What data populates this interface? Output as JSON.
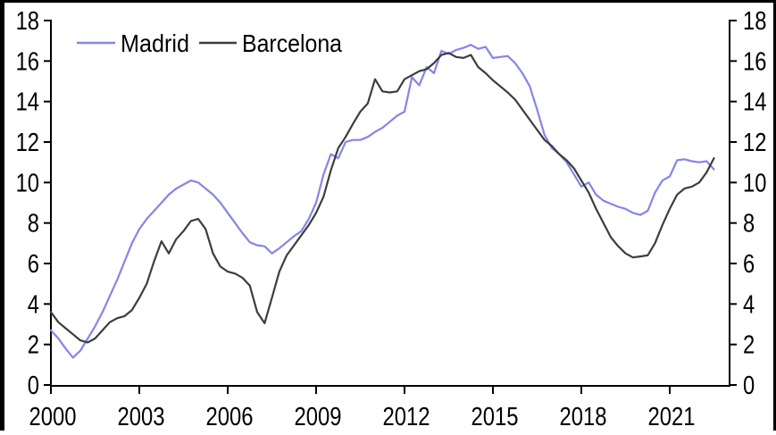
{
  "title": "",
  "legend": {
    "items": [
      {
        "label": "Madrid",
        "color": "#8585e8"
      },
      {
        "label": "Barcelona",
        "color": "#3d3d3d"
      }
    ]
  },
  "colors": {
    "background": "#ffffff",
    "axis": "#000000",
    "frame_border": "#000000",
    "madrid_line": "#8585e8",
    "barcelona_line": "#3d3d3d"
  },
  "chart_data": {
    "type": "line",
    "title": "",
    "xlabel": "",
    "ylabel": "",
    "grid": false,
    "legend_position": "top-left",
    "dual_y_axis": true,
    "xlim": [
      2000,
      2023.03
    ],
    "ylim": [
      0,
      18
    ],
    "x_ticks": [
      2000,
      2003,
      2006,
      2009,
      2012,
      2015,
      2018,
      2021
    ],
    "y_ticks": [
      0,
      2,
      4,
      6,
      8,
      10,
      12,
      14,
      16,
      18
    ],
    "x_start": 2000,
    "x_step": 0.25,
    "x_unit": "year-quarterly",
    "series": [
      {
        "name": "Madrid",
        "color": "#8585e8",
        "values": [
          2.7,
          2.3,
          1.8,
          1.35,
          1.7,
          2.3,
          2.9,
          3.6,
          4.4,
          5.2,
          6.1,
          7.0,
          7.7,
          8.2,
          8.6,
          9.0,
          9.4,
          9.7,
          9.9,
          10.1,
          10.0,
          9.7,
          9.4,
          9.0,
          8.5,
          8.0,
          7.5,
          7.05,
          6.9,
          6.85,
          6.5,
          6.75,
          7.05,
          7.35,
          7.6,
          8.2,
          9.0,
          10.4,
          11.4,
          11.2,
          12.0,
          12.1,
          12.1,
          12.25,
          12.5,
          12.7,
          13.0,
          13.3,
          13.5,
          15.2,
          14.8,
          15.7,
          15.4,
          16.5,
          16.35,
          16.55,
          16.65,
          16.8,
          16.6,
          16.7,
          16.15,
          16.2,
          16.25,
          15.9,
          15.4,
          14.75,
          13.6,
          12.35,
          11.7,
          11.4,
          11.0,
          10.4,
          9.8,
          10.0,
          9.4,
          9.1,
          8.95,
          8.8,
          8.7,
          8.5,
          8.4,
          8.6,
          9.5,
          10.1,
          10.3,
          11.1,
          11.15,
          11.05,
          11.0,
          11.05,
          10.65
        ]
      },
      {
        "name": "Barcelona",
        "color": "#3d3d3d",
        "values": [
          3.6,
          3.1,
          2.8,
          2.5,
          2.2,
          2.1,
          2.3,
          2.7,
          3.1,
          3.3,
          3.4,
          3.7,
          4.3,
          5.0,
          6.1,
          7.1,
          6.5,
          7.2,
          7.6,
          8.1,
          8.2,
          7.7,
          6.5,
          5.85,
          5.6,
          5.5,
          5.3,
          4.9,
          3.6,
          3.05,
          4.3,
          5.6,
          6.4,
          6.9,
          7.4,
          7.9,
          8.5,
          9.3,
          10.6,
          11.7,
          12.25,
          12.9,
          13.5,
          13.9,
          15.1,
          14.5,
          14.45,
          14.5,
          15.1,
          15.3,
          15.5,
          15.6,
          15.9,
          16.3,
          16.4,
          16.2,
          16.15,
          16.3,
          15.7,
          15.4,
          15.05,
          14.75,
          14.45,
          14.1,
          13.6,
          13.1,
          12.6,
          12.1,
          11.8,
          11.4,
          11.1,
          10.7,
          10.1,
          9.5,
          8.7,
          8.0,
          7.3,
          6.85,
          6.5,
          6.3,
          6.35,
          6.4,
          7.0,
          7.9,
          8.7,
          9.4,
          9.7,
          9.8,
          10.0,
          10.5,
          11.2
        ]
      }
    ]
  }
}
